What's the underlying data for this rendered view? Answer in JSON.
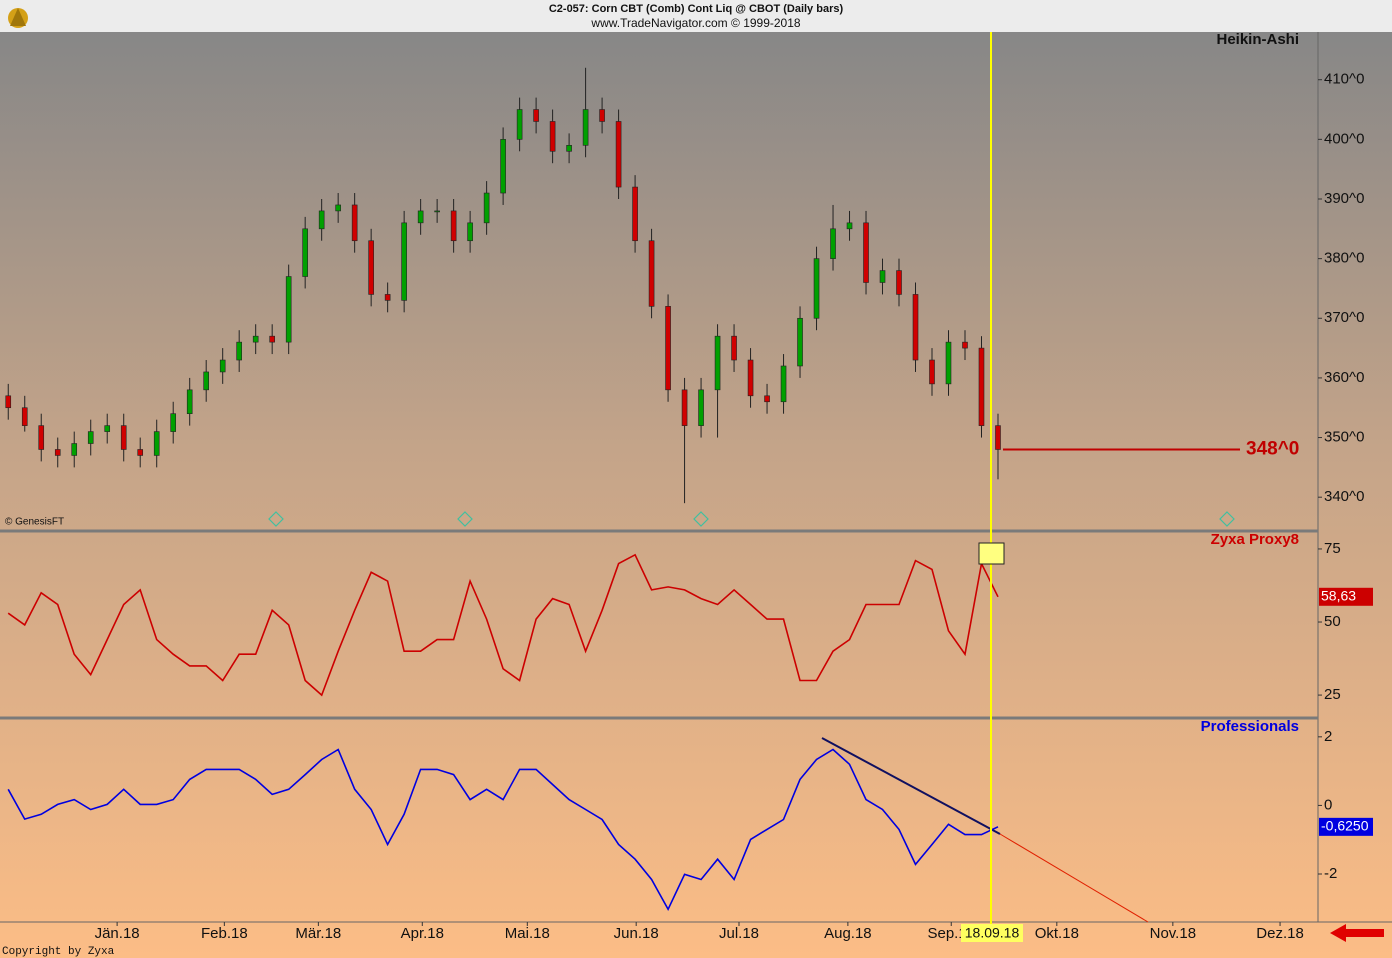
{
  "header": {
    "line1": "C2-057:  Corn CBT (Comb) Cont Liq @ CBOT  (Daily bars)",
    "line2": "www.TradeNavigator.com © 1999-2018"
  },
  "source_note": "© GenesisFT",
  "footer": "Copyright by Zyxa",
  "cursor_label": "18.09.18",
  "chart_data": [
    {
      "type": "candlestick",
      "title": "Heikin-Ashi",
      "up_color": "#00a000",
      "down_color": "#d00000",
      "xlim": [
        -1.5,
        238.2
      ],
      "ylim": [
        334.5,
        418
      ],
      "yticks": [
        {
          "value": 340,
          "label": "340^0"
        },
        {
          "value": 350,
          "label": "350^0"
        },
        {
          "value": 360,
          "label": "360^0"
        },
        {
          "value": 370,
          "label": "370^0"
        },
        {
          "value": 380,
          "label": "380^0"
        },
        {
          "value": 390,
          "label": "390^0"
        },
        {
          "value": 400,
          "label": "400^0"
        },
        {
          "value": 410,
          "label": "410^0"
        }
      ],
      "x": [
        0,
        3,
        6,
        9,
        12,
        15,
        18,
        21,
        24,
        27,
        30,
        33,
        36,
        39,
        42,
        45,
        48,
        51,
        54,
        57,
        60,
        63,
        66,
        69,
        72,
        75,
        78,
        81,
        84,
        87,
        90,
        93,
        96,
        99,
        102,
        105,
        108,
        111,
        114,
        117,
        120,
        123,
        126,
        129,
        132,
        135,
        138,
        141,
        144,
        147,
        150,
        153,
        156,
        159,
        162,
        165,
        168,
        171,
        174,
        177,
        180
      ],
      "open": [
        357,
        355,
        352,
        348,
        347,
        349,
        351,
        352,
        348,
        347,
        351,
        354,
        358,
        361,
        363,
        366,
        367,
        366,
        377,
        385,
        388,
        389,
        383,
        374,
        373,
        386,
        388,
        388,
        383,
        386,
        391,
        400,
        405,
        403,
        398,
        399,
        405,
        403,
        392,
        383,
        372,
        358,
        352,
        358,
        367,
        363,
        357,
        356,
        362,
        370,
        380,
        385,
        386,
        376,
        378,
        374,
        363,
        359,
        366,
        365,
        352
      ],
      "high": [
        359,
        357,
        354,
        350,
        351,
        353,
        354,
        354,
        350,
        353,
        356,
        360,
        363,
        365,
        368,
        369,
        369,
        379,
        387,
        390,
        391,
        391,
        385,
        376,
        388,
        390,
        390,
        390,
        388,
        393,
        402,
        407,
        407,
        405,
        401,
        412,
        407,
        405,
        394,
        385,
        374,
        360,
        360,
        369,
        369,
        365,
        359,
        364,
        372,
        382,
        389,
        388,
        388,
        380,
        380,
        376,
        365,
        368,
        368,
        367,
        354
      ],
      "low": [
        353,
        351,
        346,
        345,
        345,
        347,
        349,
        346,
        345,
        345,
        349,
        352,
        356,
        359,
        361,
        364,
        364,
        364,
        375,
        383,
        386,
        381,
        372,
        371,
        371,
        384,
        386,
        381,
        381,
        384,
        389,
        398,
        401,
        396,
        396,
        397,
        401,
        390,
        381,
        370,
        356,
        339,
        350,
        350,
        361,
        355,
        354,
        354,
        360,
        368,
        378,
        383,
        374,
        374,
        372,
        361,
        357,
        357,
        363,
        350,
        343
      ],
      "close": [
        355,
        352,
        348,
        347,
        349,
        351,
        352,
        348,
        347,
        351,
        354,
        358,
        361,
        363,
        366,
        367,
        366,
        377,
        385,
        388,
        389,
        383,
        374,
        373,
        386,
        388,
        388,
        383,
        386,
        391,
        400,
        405,
        403,
        398,
        399,
        405,
        403,
        392,
        383,
        372,
        358,
        352,
        358,
        367,
        363,
        357,
        356,
        362,
        370,
        380,
        385,
        386,
        376,
        378,
        374,
        363,
        359,
        366,
        365,
        352,
        348
      ],
      "price_label": {
        "value": 348,
        "label": "348^0",
        "color": "#c00000"
      }
    },
    {
      "type": "line",
      "title": "Zyxa Proxy8",
      "color": "#cc0000",
      "xlim": [
        -1.5,
        238.2
      ],
      "ylim": [
        17.5,
        80.8
      ],
      "yticks": [
        25,
        50,
        75
      ],
      "x": [
        0,
        3,
        6,
        9,
        12,
        15,
        18,
        21,
        24,
        27,
        30,
        33,
        36,
        39,
        42,
        45,
        48,
        51,
        54,
        57,
        60,
        63,
        66,
        69,
        72,
        75,
        78,
        81,
        84,
        87,
        90,
        93,
        96,
        99,
        102,
        105,
        108,
        111,
        114,
        117,
        120,
        123,
        126,
        129,
        132,
        135,
        138,
        141,
        144,
        147,
        150,
        153,
        156,
        159,
        162,
        165,
        168,
        171,
        174,
        177,
        180
      ],
      "values": [
        53,
        49,
        60,
        56,
        39,
        32,
        44,
        56,
        61,
        44,
        39,
        35,
        35,
        30,
        39,
        39,
        54,
        49,
        30,
        25,
        40,
        54,
        67,
        64,
        40,
        40,
        44,
        44,
        64,
        51,
        34,
        30,
        51,
        58,
        56,
        40,
        54,
        70,
        73,
        61,
        62,
        61,
        58,
        56,
        61,
        56,
        51,
        51,
        30,
        30,
        40,
        44,
        56,
        56,
        56,
        71,
        68,
        47,
        39,
        70,
        58.63
      ],
      "value_labels": {
        "60": "58,63"
      }
    },
    {
      "type": "line",
      "title": "Professionals",
      "color": "#0000e0",
      "xlim": [
        -1.5,
        238.2
      ],
      "ylim": [
        -3.4,
        2.52
      ],
      "yticks": [
        -2,
        0,
        2
      ],
      "x": [
        0,
        3,
        6,
        9,
        12,
        15,
        18,
        21,
        24,
        27,
        30,
        33,
        36,
        39,
        42,
        45,
        48,
        51,
        54,
        57,
        60,
        63,
        66,
        69,
        72,
        75,
        78,
        81,
        84,
        87,
        90,
        93,
        96,
        99,
        102,
        105,
        108,
        111,
        114,
        117,
        120,
        123,
        126,
        129,
        132,
        135,
        138,
        141,
        144,
        147,
        150,
        153,
        156,
        159,
        162,
        165,
        168,
        171,
        174,
        177,
        180
      ],
      "values": [
        0.47,
        -0.4,
        -0.26,
        0.03,
        0.17,
        -0.12,
        0.03,
        0.47,
        0.03,
        0.03,
        0.17,
        0.76,
        1.05,
        1.05,
        1.05,
        0.76,
        0.32,
        0.47,
        0.9,
        1.34,
        1.63,
        0.47,
        -0.12,
        -1.14,
        -0.26,
        1.05,
        1.05,
        0.9,
        0.17,
        0.47,
        0.17,
        1.05,
        1.05,
        0.61,
        0.17,
        -0.12,
        -0.41,
        -1.14,
        -1.57,
        -2.16,
        -3.03,
        -2.01,
        -2.16,
        -1.57,
        -2.16,
        -0.99,
        -0.7,
        -0.41,
        0.76,
        1.34,
        1.63,
        1.2,
        0.17,
        -0.12,
        -0.7,
        -1.72,
        -1.14,
        -0.55,
        -0.85,
        -0.85,
        -0.625
      ],
      "value_labels": {
        "60": "-0,6250"
      },
      "xticks": [
        {
          "value": 19.8,
          "label": "Jän.18"
        },
        {
          "value": 39.3,
          "label": "Feb.18"
        },
        {
          "value": 56.4,
          "label": "Mär.18"
        },
        {
          "value": 75.3,
          "label": "Apr.18"
        },
        {
          "value": 94.4,
          "label": "Mai.18"
        },
        {
          "value": 114.2,
          "label": "Jun.18"
        },
        {
          "value": 132.9,
          "label": "Jul.18"
        },
        {
          "value": 152.7,
          "label": "Aug.18"
        },
        {
          "value": 171.5,
          "label": "Sep.18"
        },
        {
          "value": 190.7,
          "label": "Okt.18"
        },
        {
          "value": 211.8,
          "label": "Nov.18"
        },
        {
          "value": 231.3,
          "label": "Dez.18"
        }
      ]
    }
  ]
}
